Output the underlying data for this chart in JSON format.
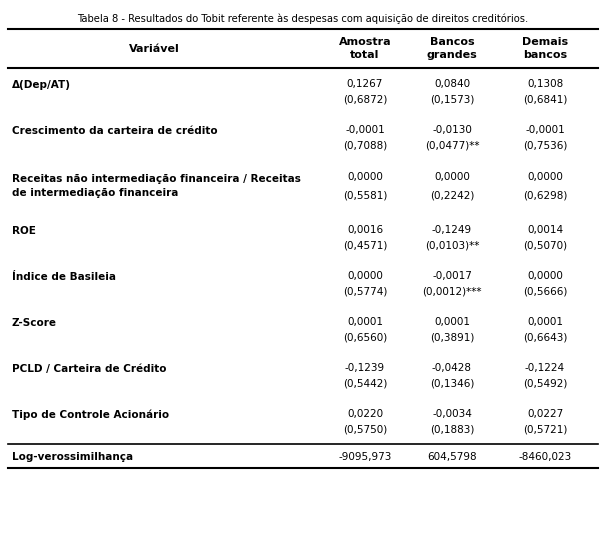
{
  "title": "Tabela 8 - Resultados do Tobit referente às despesas com aquisição de direitos creditórios.",
  "headers": [
    "Variável",
    "Amostra\ntotal",
    "Bancos\ngrandes",
    "Demais\nbancos"
  ],
  "rows": [
    {
      "label": "Δ(Dep/AT)",
      "bold": true,
      "two_line_label": false,
      "values": [
        "0,1267",
        "0,0840",
        "0,1308"
      ],
      "pvalues": [
        "(0,6872)",
        "(0,1573)",
        "(0,6841)"
      ]
    },
    {
      "label": "Crescimento da carteira de crédito",
      "bold": true,
      "two_line_label": false,
      "values": [
        "-0,0001",
        "-0,0130",
        "-0,0001"
      ],
      "pvalues": [
        "(0,7088)",
        "(0,0477)**",
        "(0,7536)"
      ]
    },
    {
      "label": "Receitas não intermediação financeira / Receitas\nde intermediação financeira",
      "bold": true,
      "two_line_label": true,
      "label_line1": "Receitas não intermediação financeira / Receitas",
      "label_line2": "de intermediação financeira",
      "values": [
        "0,0000",
        "0,0000",
        "0,0000"
      ],
      "pvalues": [
        "(0,5581)",
        "(0,2242)",
        "(0,6298)"
      ]
    },
    {
      "label": "ROE",
      "bold": true,
      "two_line_label": false,
      "values": [
        "0,0016",
        "-0,1249",
        "0,0014"
      ],
      "pvalues": [
        "(0,4571)",
        "(0,0103)**",
        "(0,5070)"
      ]
    },
    {
      "label": "Índice de Basileia",
      "bold": true,
      "two_line_label": false,
      "values": [
        "0,0000",
        "-0,0017",
        "0,0000"
      ],
      "pvalues": [
        "(0,5774)",
        "(0,0012)***",
        "(0,5666)"
      ]
    },
    {
      "label": "Z-Score",
      "bold": true,
      "two_line_label": false,
      "values": [
        "0,0001",
        "0,0001",
        "0,0001"
      ],
      "pvalues": [
        "(0,6560)",
        "(0,3891)",
        "(0,6643)"
      ]
    },
    {
      "label": "PCLD / Carteira de Crédito",
      "bold": true,
      "two_line_label": false,
      "values": [
        "-0,1239",
        "-0,0428",
        "-0,1224"
      ],
      "pvalues": [
        "(0,5442)",
        "(0,1346)",
        "(0,5492)"
      ]
    },
    {
      "label": "Tipo de Controle Acionário",
      "bold": true,
      "two_line_label": false,
      "values": [
        "0,0220",
        "-0,0034",
        "0,0227"
      ],
      "pvalues": [
        "(0,5750)",
        "(0,1883)",
        "(0,5721)"
      ]
    }
  ],
  "last_row": {
    "label": "Log-verossimilhança",
    "bold": true,
    "values": [
      "-9095,973",
      "604,5798",
      "-8460,023"
    ]
  },
  "background_color": "#ffffff",
  "text_color": "#000000",
  "font_size": 7.5,
  "title_font_size": 7.2,
  "header_font_size": 8.0
}
